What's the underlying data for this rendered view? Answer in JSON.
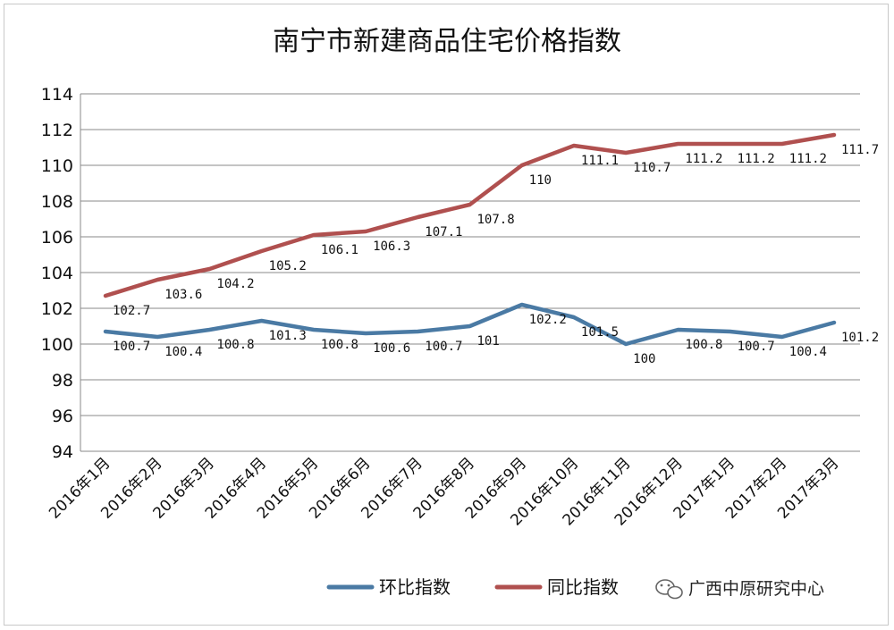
{
  "chart_data": {
    "type": "line",
    "title": "南宁市新建商品住宅价格指数",
    "categories": [
      "2016年1月",
      "2016年2月",
      "2016年3月",
      "2016年4月",
      "2016年5月",
      "2016年6月",
      "2016年7月",
      "2016年8月",
      "2016年9月",
      "2016年10月",
      "2016年11月",
      "2016年12月",
      "2017年1月",
      "2017年2月",
      "2017年3月"
    ],
    "series": [
      {
        "name": "环比指数",
        "color": "#4a7aa4",
        "values": [
          100.7,
          100.4,
          100.8,
          101.3,
          100.8,
          100.6,
          100.7,
          101,
          102.2,
          101.5,
          100,
          100.8,
          100.7,
          100.4,
          101.2
        ],
        "labels": [
          "100.7",
          "100.4",
          "100.8",
          "101.3",
          "100.8",
          "100.6",
          "100.7",
          "101",
          "102.2",
          "101.5",
          "100",
          "100.8",
          "100.7",
          "100.4",
          "101.2"
        ]
      },
      {
        "name": "同比指数",
        "color": "#b0504f",
        "values": [
          102.7,
          103.6,
          104.2,
          105.2,
          106.1,
          106.3,
          107.1,
          107.8,
          110,
          111.1,
          110.7,
          111.2,
          111.2,
          111.2,
          111.7
        ],
        "labels": [
          "102.7",
          "103.6",
          "104.2",
          "105.2",
          "106.1",
          "106.3",
          "107.1",
          "107.8",
          "110",
          "111.1",
          "110.7",
          "111.2",
          "111.2",
          "111.2",
          "111.7"
        ]
      }
    ],
    "ylim": [
      94,
      114
    ],
    "yticks": [
      "94",
      "96",
      "98",
      "100",
      "102",
      "104",
      "106",
      "108",
      "110",
      "112",
      "114"
    ],
    "grid": true,
    "legend": "bottom"
  },
  "watermark": {
    "text": "广西中原研究中心",
    "icon": "wechat-icon"
  }
}
